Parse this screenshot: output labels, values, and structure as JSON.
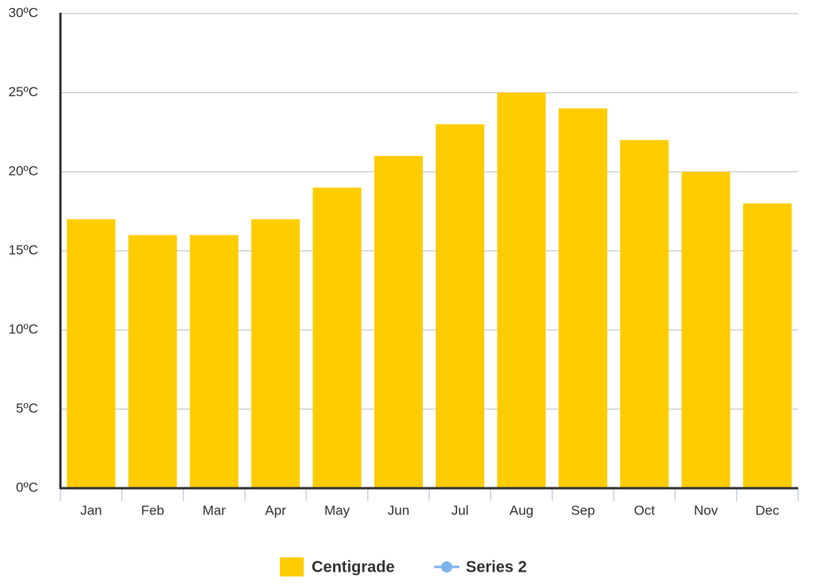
{
  "chart_data": {
    "type": "bar",
    "categories": [
      "Jan",
      "Feb",
      "Mar",
      "Apr",
      "May",
      "Jun",
      "Jul",
      "Aug",
      "Sep",
      "Oct",
      "Nov",
      "Dec"
    ],
    "series": [
      {
        "name": "Centigrade",
        "color": "#ffcc00",
        "values": [
          17,
          16,
          16,
          17,
          19,
          21,
          23,
          25,
          24,
          22,
          20,
          18
        ]
      },
      {
        "name": "Series 2",
        "color": "#7cb5ec",
        "values": [
          null,
          null,
          null,
          null,
          null,
          null,
          null,
          null,
          null,
          null,
          null,
          null
        ]
      }
    ],
    "ylim": [
      0,
      30
    ],
    "yticks": [
      {
        "value": 0,
        "label": "0ºC"
      },
      {
        "value": 5,
        "label": "5ºC"
      },
      {
        "value": 10,
        "label": "10ºC"
      },
      {
        "value": 15,
        "label": "15ºC"
      },
      {
        "value": 20,
        "label": "20ºC"
      },
      {
        "value": 25,
        "label": "25ºC"
      },
      {
        "value": 30,
        "label": "30ºC"
      }
    ],
    "grid": true
  }
}
